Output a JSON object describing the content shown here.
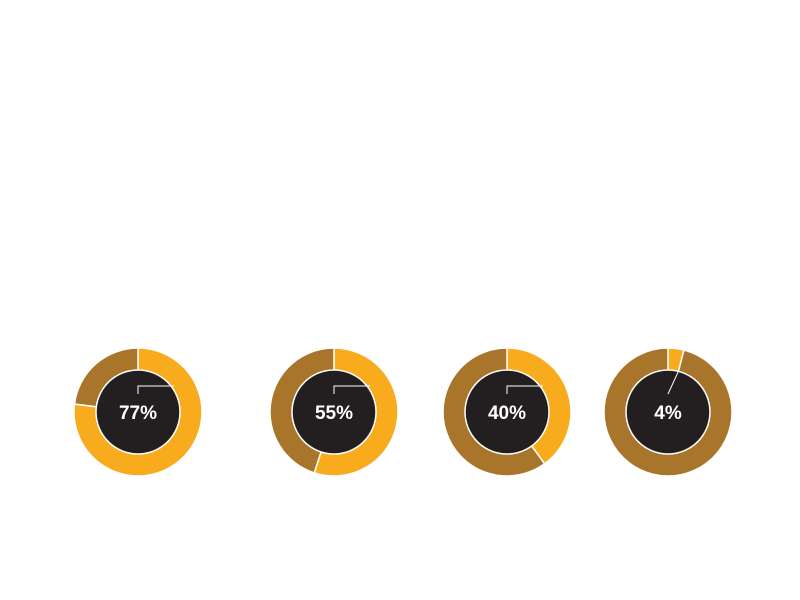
{
  "chart_data": [
    {
      "type": "pie",
      "variant": "donut",
      "label": "77%",
      "values": [
        77,
        23
      ],
      "colors": [
        "#F8AB1C",
        "#A8752B"
      ],
      "center_color": "#231F20"
    },
    {
      "type": "pie",
      "variant": "donut",
      "label": "55%",
      "values": [
        55,
        45
      ],
      "colors": [
        "#F8AB1C",
        "#A8752B"
      ],
      "center_color": "#231F20"
    },
    {
      "type": "pie",
      "variant": "donut",
      "label": "40%",
      "values": [
        40,
        60
      ],
      "colors": [
        "#F8AB1C",
        "#A8752B"
      ],
      "center_color": "#231F20"
    },
    {
      "type": "pie",
      "variant": "donut",
      "label": "4%",
      "values": [
        4,
        96
      ],
      "colors": [
        "#F8AB1C",
        "#A8752B"
      ],
      "center_color": "#231F20"
    }
  ]
}
